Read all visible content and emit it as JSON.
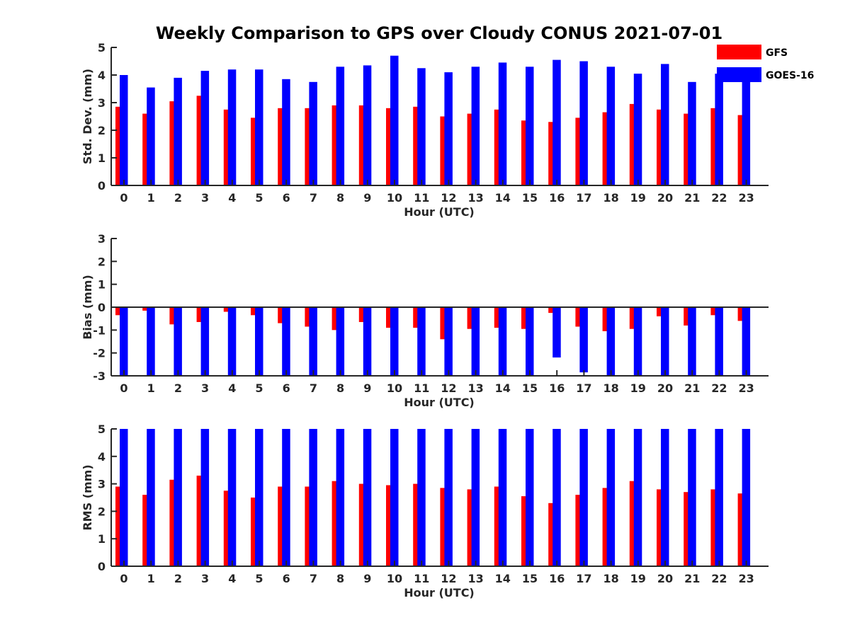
{
  "title": "Weekly Comparison to GPS over Cloudy CONUS 2021-07-01",
  "legend": {
    "placement": "top-right",
    "entries": [
      {
        "label": "GFS",
        "color": "#ff0000"
      },
      {
        "label": "GOES-16",
        "color": "#0000ff"
      }
    ]
  },
  "chart_data": [
    {
      "type": "bar",
      "ylabel": "Std. Dev. (mm)",
      "xlabel": "Hour (UTC)",
      "ylim": [
        0,
        5
      ],
      "yticks": [
        0,
        1,
        2,
        3,
        4,
        5
      ],
      "categories": [
        "0",
        "1",
        "2",
        "3",
        "4",
        "5",
        "6",
        "7",
        "8",
        "9",
        "10",
        "11",
        "12",
        "13",
        "14",
        "15",
        "16",
        "17",
        "18",
        "19",
        "20",
        "21",
        "22",
        "23"
      ],
      "series": [
        {
          "name": "GFS",
          "color": "#ff0000",
          "values": [
            2.85,
            2.6,
            3.05,
            3.25,
            2.75,
            2.45,
            2.8,
            2.8,
            2.9,
            2.9,
            2.8,
            2.85,
            2.5,
            2.6,
            2.75,
            2.35,
            2.3,
            2.45,
            2.65,
            2.95,
            2.75,
            2.6,
            2.8,
            2.55
          ]
        },
        {
          "name": "GOES-16",
          "color": "#0000ff",
          "values": [
            4.0,
            3.55,
            3.9,
            4.15,
            4.2,
            4.2,
            3.85,
            3.75,
            4.3,
            4.35,
            4.7,
            4.25,
            4.1,
            4.3,
            4.45,
            4.3,
            4.55,
            4.5,
            4.3,
            4.05,
            4.4,
            3.75,
            4.05,
            3.9
          ]
        }
      ]
    },
    {
      "type": "bar",
      "ylabel": "Bias (mm)",
      "xlabel": "Hour (UTC)",
      "ylim": [
        -3,
        3
      ],
      "yticks": [
        -3,
        -2,
        -1,
        0,
        1,
        2,
        3
      ],
      "zero_line": true,
      "categories": [
        "0",
        "1",
        "2",
        "3",
        "4",
        "5",
        "6",
        "7",
        "8",
        "9",
        "10",
        "11",
        "12",
        "13",
        "14",
        "15",
        "16",
        "17",
        "18",
        "19",
        "20",
        "21",
        "22",
        "23"
      ],
      "series": [
        {
          "name": "GFS",
          "color": "#ff0000",
          "values": [
            -0.35,
            -0.15,
            -0.75,
            -0.65,
            -0.2,
            -0.35,
            -0.7,
            -0.85,
            -1.0,
            -0.65,
            -0.9,
            -0.9,
            -1.4,
            -0.95,
            -0.9,
            -0.95,
            -0.25,
            -0.85,
            -1.05,
            -0.95,
            -0.4,
            -0.8,
            -0.35,
            -0.6
          ]
        },
        {
          "name": "GOES-16",
          "color": "#0000ff",
          "values": [
            -3.0,
            -3.0,
            -3.0,
            -3.0,
            -3.0,
            -3.0,
            -3.0,
            -3.0,
            -3.0,
            -3.0,
            -3.0,
            -3.0,
            -3.0,
            -3.0,
            -3.0,
            -3.0,
            -2.2,
            -2.85,
            -3.0,
            -3.0,
            -3.0,
            -3.0,
            -3.0,
            -3.0
          ]
        }
      ]
    },
    {
      "type": "bar",
      "ylabel": "RMS (mm)",
      "xlabel": "Hour (UTC)",
      "ylim": [
        0,
        5
      ],
      "yticks": [
        0,
        1,
        2,
        3,
        4,
        5
      ],
      "categories": [
        "0",
        "1",
        "2",
        "3",
        "4",
        "5",
        "6",
        "7",
        "8",
        "9",
        "10",
        "11",
        "12",
        "13",
        "14",
        "15",
        "16",
        "17",
        "18",
        "19",
        "20",
        "21",
        "22",
        "23"
      ],
      "series": [
        {
          "name": "GFS",
          "color": "#ff0000",
          "values": [
            2.9,
            2.6,
            3.15,
            3.3,
            2.75,
            2.5,
            2.9,
            2.9,
            3.1,
            3.0,
            2.95,
            3.0,
            2.85,
            2.8,
            2.9,
            2.55,
            2.3,
            2.6,
            2.85,
            3.1,
            2.8,
            2.7,
            2.8,
            2.65
          ]
        },
        {
          "name": "GOES-16",
          "color": "#0000ff",
          "values": [
            5,
            5,
            5,
            5,
            5,
            5,
            5,
            5,
            5,
            5,
            5,
            5,
            5,
            5,
            5,
            5,
            5,
            5,
            5,
            5,
            5,
            5,
            5,
            5
          ]
        }
      ]
    }
  ]
}
